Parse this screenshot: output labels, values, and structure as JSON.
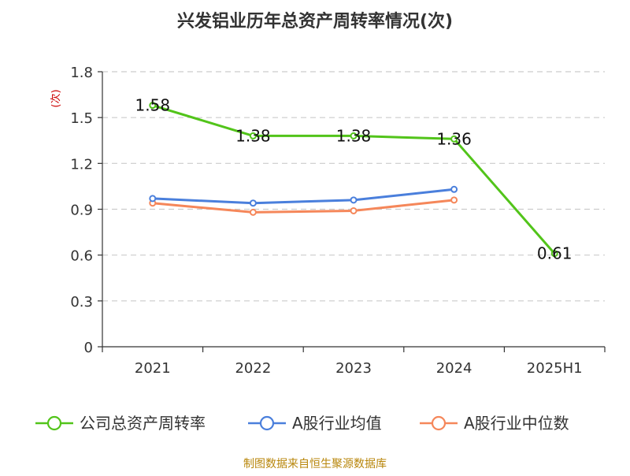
{
  "chart_data": {
    "type": "line",
    "title": "兴发铝业历年总资产周转率情况(次)",
    "ylabel": "(次)",
    "xlabel": "",
    "categories": [
      "2021",
      "2022",
      "2023",
      "2024",
      "2025H1"
    ],
    "ylim": [
      0,
      1.8
    ],
    "yticks": [
      "0",
      "0.3",
      "0.6",
      "0.9",
      "1.2",
      "1.5",
      "1.8"
    ],
    "grid": true,
    "legend_position": "bottom",
    "series": [
      {
        "name": "公司总资产周转率",
        "color": "#52c41a",
        "values": [
          1.58,
          1.38,
          1.38,
          1.36,
          0.61
        ],
        "labels": [
          "1.58",
          "1.38",
          "1.38",
          "1.36",
          "0.61"
        ]
      },
      {
        "name": "A股行业均值",
        "color": "#4a7fdc",
        "values": [
          0.97,
          0.94,
          0.96,
          1.03,
          null
        ]
      },
      {
        "name": "A股行业中位数",
        "color": "#f5875a",
        "values": [
          0.94,
          0.88,
          0.89,
          0.96,
          null
        ]
      }
    ],
    "source": "制图数据来自恒生聚源数据库"
  }
}
